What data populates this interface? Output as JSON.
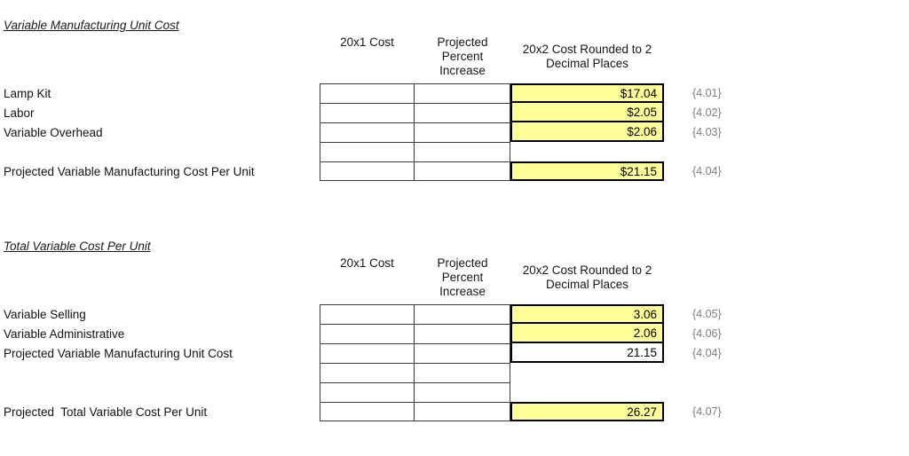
{
  "colors": {
    "highlight_cell": "#FFFF99",
    "cell_border": "#000000",
    "grid_border": "#3c3c3c",
    "ref_code_gray": "#7f7f7f",
    "background": "#ffffff"
  },
  "sections": [
    {
      "title": "Variable Manufacturing Unit Cost",
      "headers": {
        "col1": "20x1 Cost",
        "col2": "Projected\nPercent\nIncrease",
        "col3": "20x2 Cost Rounded to 2\nDecimal Places"
      },
      "rows": [
        {
          "label": "Lamp Kit",
          "value": "$17.04",
          "ref": "{4.01}"
        },
        {
          "label": "Labor",
          "value": "$2.05",
          "ref": "{4.02}"
        },
        {
          "label": "Variable Overhead",
          "value": "$2.06",
          "ref": "{4.03}"
        },
        {
          "label": "",
          "value": "",
          "ref": ""
        },
        {
          "label": "Projected Variable Manufacturing Cost Per Unit",
          "value": "$21.15",
          "ref": "{4.04}"
        }
      ]
    },
    {
      "title": "Total Variable Cost Per Unit",
      "headers": {
        "col1": "20x1 Cost",
        "col2": "Projected\nPercent\nIncrease",
        "col3": "20x2 Cost Rounded to 2\nDecimal Places"
      },
      "rows": [
        {
          "label": "Variable Selling",
          "value": "3.06",
          "ref": "{4.05}"
        },
        {
          "label": "Variable Administrative",
          "value": "2.06",
          "ref": "{4.06}"
        },
        {
          "label": "Projected Variable Manufacturing Unit Cost",
          "value": "21.15",
          "ref": "{4.04}"
        },
        {
          "label": "",
          "value": "",
          "ref": ""
        },
        {
          "label": "",
          "value": "",
          "ref": ""
        },
        {
          "label": "Projected  Total Variable Cost Per Unit",
          "value": "26.27",
          "ref": "{4.07}"
        }
      ]
    }
  ]
}
